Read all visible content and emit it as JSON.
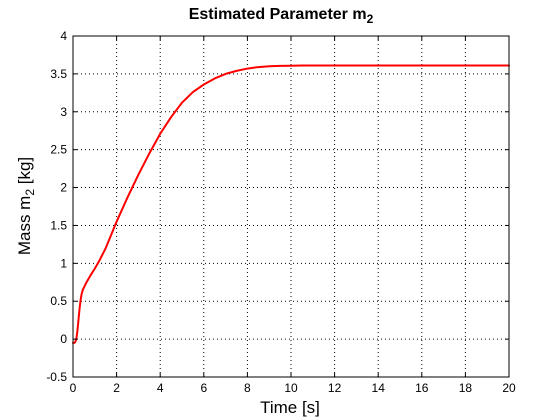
{
  "chart_data": {
    "type": "line",
    "title": "Estimated Parameter m",
    "title_subscript": "2",
    "xlabel": "Time [s]",
    "ylabel": "Mass m",
    "ylabel_subscript": "2",
    "ylabel_unit": " [kg]",
    "xlim": [
      0,
      20
    ],
    "ylim": [
      -0.5,
      4
    ],
    "xticks": [
      "0",
      "2",
      "4",
      "6",
      "8",
      "10",
      "12",
      "14",
      "16",
      "18",
      "20"
    ],
    "yticks": [
      "-0.5",
      "0",
      "0.5",
      "1",
      "1.5",
      "2",
      "2.5",
      "3",
      "3.5",
      "4"
    ],
    "grid": true,
    "series_color": "#ff0000",
    "series": [
      {
        "x": [
          0,
          0.05,
          0.1,
          0.15,
          0.2,
          0.25,
          0.3,
          0.35,
          0.4,
          0.45,
          0.5,
          0.6,
          0.7,
          0.8,
          1.0,
          1.2,
          1.5,
          2.0,
          2.5,
          3.0,
          3.5,
          4.0,
          4.5,
          5.0,
          5.5,
          6.0,
          6.5,
          7.0,
          7.5,
          8.0,
          8.5,
          9.0,
          9.5,
          10.0,
          10.5,
          11.0,
          11.5,
          12.0,
          13.0,
          14.0,
          15.0,
          16.0,
          17.0,
          18.0,
          19.0,
          20.0
        ],
        "y": [
          -0.05,
          -0.05,
          -0.04,
          0.0,
          0.1,
          0.25,
          0.4,
          0.52,
          0.6,
          0.65,
          0.68,
          0.74,
          0.79,
          0.84,
          0.93,
          1.03,
          1.2,
          1.55,
          1.87,
          2.17,
          2.45,
          2.71,
          2.93,
          3.12,
          3.26,
          3.36,
          3.44,
          3.5,
          3.54,
          3.57,
          3.59,
          3.6,
          3.605,
          3.608,
          3.61,
          3.61,
          3.61,
          3.61,
          3.61,
          3.61,
          3.61,
          3.61,
          3.61,
          3.61,
          3.61,
          3.61
        ]
      }
    ]
  }
}
